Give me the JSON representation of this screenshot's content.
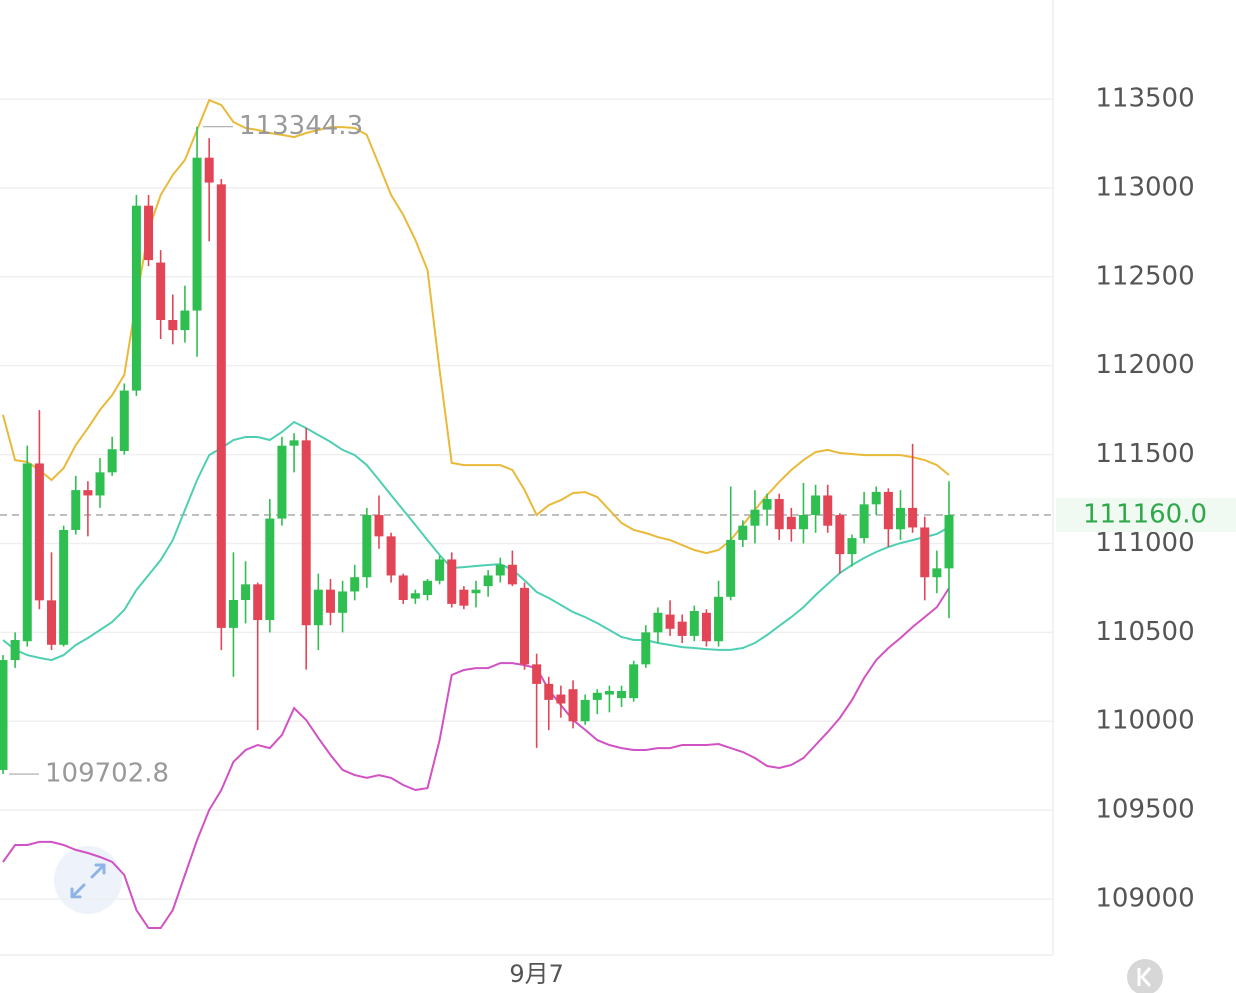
{
  "chart_data": {
    "type": "candlestick",
    "categories": [
      null,
      null,
      null,
      null,
      null,
      null,
      null,
      null,
      null,
      null,
      null,
      null,
      null,
      null,
      null,
      null,
      null,
      null,
      null,
      null,
      null,
      null,
      null,
      null,
      null,
      null,
      null,
      null,
      null,
      null,
      null,
      null,
      null,
      null,
      null,
      null,
      null,
      null,
      null,
      null,
      null,
      null,
      null,
      null,
      "9月7",
      null,
      null,
      null,
      null,
      null,
      null,
      null,
      null,
      null,
      null,
      null,
      null,
      null,
      null,
      null,
      null,
      null,
      null,
      null,
      null,
      null,
      null,
      null,
      null,
      null,
      null,
      null,
      null,
      null,
      null,
      null,
      null,
      null,
      null
    ],
    "open": [
      109726,
      110344,
      110450,
      111450,
      110680,
      110430,
      111076,
      111300,
      111270,
      111400,
      111520,
      111860,
      112900,
      112580,
      112257,
      112200,
      112310,
      113170,
      113020,
      110525,
      110682,
      110770,
      110569,
      111140,
      111550,
      111580,
      110540,
      110740,
      110610,
      110730,
      110810,
      111160,
      111040,
      110820,
      110690,
      110710,
      110790,
      110910,
      110740,
      110720,
      110760,
      110820,
      110880,
      110750,
      110320,
      110210,
      110150,
      110180,
      110000,
      110120,
      110150,
      110130,
      110130,
      110320,
      110500,
      110600,
      110560,
      110480,
      110610,
      110450,
      110700,
      111020,
      111100,
      111190,
      111250,
      111150,
      111080,
      111160,
      111270,
      111160,
      110940,
      111030,
      111220,
      111290,
      111080,
      111200,
      111090,
      110810,
      110860
    ],
    "high": [
      110372,
      110500,
      111550,
      111750,
      110950,
      111100,
      111380,
      111350,
      111480,
      111600,
      111900,
      112960,
      112960,
      112650,
      112400,
      112450,
      113344.3,
      113280,
      113050,
      110950,
      110900,
      110780,
      111250,
      111600,
      111620,
      111650,
      110830,
      110800,
      110790,
      110880,
      111200,
      111270,
      111060,
      110830,
      110740,
      110800,
      110930,
      110950,
      110760,
      110790,
      110850,
      110920,
      110960,
      110780,
      110380,
      110250,
      110200,
      110230,
      110150,
      110180,
      110200,
      110200,
      110340,
      110540,
      110640,
      110680,
      110600,
      110650,
      110630,
      110790,
      111320,
      111130,
      111300,
      111280,
      111280,
      111200,
      111340,
      111330,
      111330,
      111170,
      111050,
      111290,
      111320,
      111310,
      111300,
      111560,
      111150,
      110960,
      111350
    ],
    "low": [
      109702.8,
      110300,
      110420,
      110630,
      110400,
      110420,
      111050,
      111040,
      111200,
      111380,
      111500,
      111830,
      112560,
      112150,
      112120,
      112130,
      112050,
      112700,
      110400,
      110250,
      110550,
      109950,
      110500,
      111100,
      111400,
      110290,
      110400,
      110540,
      110500,
      110680,
      110750,
      110970,
      110780,
      110660,
      110660,
      110680,
      110770,
      110640,
      110630,
      110640,
      110700,
      110780,
      110760,
      110290,
      109850,
      109950,
      110020,
      109960,
      109980,
      110040,
      110050,
      110080,
      110110,
      110300,
      110440,
      110480,
      110440,
      110450,
      110420,
      110420,
      110680,
      110980,
      111000,
      111100,
      111020,
      111010,
      111000,
      111060,
      111060,
      110830,
      110870,
      111000,
      111160,
      110980,
      111020,
      111060,
      110680,
      110720,
      110580
    ],
    "close": [
      110344,
      110457,
      111450,
      110680,
      110430,
      111076,
      111300,
      111270,
      111400,
      111530,
      111860,
      112900,
      112594,
      112257,
      112200,
      112310,
      113170,
      113030,
      110525,
      110682,
      110770,
      110569,
      111140,
      111550,
      111580,
      110540,
      110740,
      110610,
      110730,
      110810,
      111160,
      111040,
      110820,
      110682,
      110720,
      110790,
      110910,
      110660,
      110650,
      110740,
      110820,
      110880,
      110770,
      110320,
      110210,
      110120,
      110100,
      110000,
      110120,
      110160,
      110170,
      110170,
      110320,
      110500,
      110610,
      110520,
      110480,
      110620,
      110450,
      110700,
      111020,
      111100,
      111190,
      111250,
      111080,
      111080,
      111160,
      111270,
      111100,
      110940,
      111030,
      111220,
      111290,
      111080,
      111200,
      111090,
      110810,
      110860,
      111160
    ],
    "up_color": "#2fbf50",
    "down_color": "#e24556",
    "overlays": [
      {
        "color": "#e9b93a",
        "values": [
          111723,
          111469,
          111458,
          111413,
          111357,
          111424,
          111554,
          111649,
          111751,
          111835,
          111948,
          112369,
          112763,
          112960,
          113073,
          113157,
          113326,
          113494,
          113466,
          113371,
          113337,
          113326,
          113309,
          113298,
          113286,
          113309,
          113326,
          113342,
          113342,
          113337,
          113298,
          113129,
          112960,
          112848,
          112707,
          112538,
          111976,
          111453,
          111441,
          111441,
          111441,
          111441,
          111413,
          111301,
          111160,
          111216,
          111244,
          111284,
          111289,
          111261,
          111188,
          111115,
          111076,
          111059,
          111036,
          111019,
          110991,
          110963,
          110946,
          110963,
          111019,
          111104,
          111188,
          111272,
          111346,
          111413,
          111469,
          111514,
          111526,
          111509,
          111503,
          111497,
          111497,
          111497,
          111497,
          111486,
          111469,
          111441,
          111385
        ]
      },
      {
        "color": "#4fcfb2",
        "values": [
          110457,
          110401,
          110372,
          110356,
          110344,
          110372,
          110429,
          110468,
          110513,
          110558,
          110626,
          110738,
          110822,
          110907,
          111019,
          111188,
          111357,
          111497,
          111537,
          111582,
          111599,
          111599,
          111582,
          111627,
          111683,
          111649,
          111610,
          111571,
          111526,
          111497,
          111441,
          111357,
          111272,
          111188,
          111104,
          111019,
          110935,
          110862,
          110867,
          110873,
          110879,
          110884,
          110851,
          110794,
          110727,
          110693,
          110654,
          110614,
          110586,
          110552,
          110513,
          110474,
          110457,
          110457,
          110440,
          110429,
          110417,
          110412,
          110406,
          110401,
          110401,
          110412,
          110440,
          110485,
          110536,
          110586,
          110642,
          110710,
          110772,
          110834,
          110879,
          110918,
          110952,
          110980,
          111002,
          111019,
          111036,
          111053,
          111092
        ]
      },
      {
        "color": "#d152c4",
        "values": [
          109208,
          109304,
          109304,
          109321,
          109321,
          109304,
          109276,
          109259,
          109236,
          109208,
          109135,
          108938,
          108837,
          108837,
          108938,
          109135,
          109332,
          109501,
          109613,
          109771,
          109838,
          109866,
          109849,
          109922,
          110074,
          110007,
          109906,
          109810,
          109726,
          109697,
          109681,
          109697,
          109681,
          109641,
          109613,
          109624,
          109894,
          110260,
          110288,
          110299,
          110299,
          110327,
          110327,
          110316,
          110299,
          110176,
          110091,
          110007,
          109951,
          109894,
          109866,
          109849,
          109838,
          109838,
          109849,
          109849,
          109866,
          109866,
          109866,
          109872,
          109849,
          109827,
          109793,
          109748,
          109737,
          109754,
          109793,
          109866,
          109939,
          110018,
          110119,
          110243,
          110344,
          110412,
          110468,
          110530,
          110586,
          110642,
          110749
        ]
      }
    ],
    "ylim": [
      108685,
      114057
    ],
    "yticks": [
      109000,
      109500,
      110000,
      110500,
      111000,
      111500,
      112000,
      112500,
      113000,
      113500
    ],
    "grid": true,
    "max_marker": {
      "value": 113344.3,
      "label": "113344.3"
    },
    "min_marker": {
      "value": 109702.8,
      "label": "109702.8"
    },
    "last_price": {
      "value": 111160,
      "label": "111160.0"
    },
    "last_price_color": "#2fa84a"
  }
}
